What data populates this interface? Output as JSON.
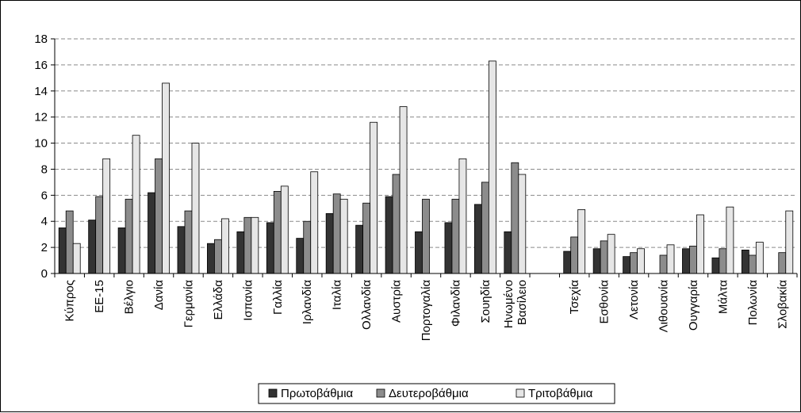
{
  "chart_data": {
    "type": "bar",
    "title": "",
    "xlabel": "",
    "ylabel": "",
    "ylim": [
      0,
      18
    ],
    "yticks": [
      0,
      2,
      4,
      6,
      8,
      10,
      12,
      14,
      16,
      18
    ],
    "grid": "horizontal dashed",
    "legend_position": "bottom",
    "categories": [
      "Κύπρος",
      "ΕΕ-15",
      "Βέλγιο",
      "Δανία",
      "Γερμανία",
      "Ελλάδα",
      "Ισπανία",
      "Γαλλία",
      "Ιρλανδία",
      "Ιταλία",
      "Ολλανδία",
      "Αυστρία",
      "Πορτογαλία",
      "Φιλανδία",
      "Σουηδία",
      [
        "Ηνωμένο",
        "Βασίλειο"
      ],
      "",
      "Τσεχία",
      "Εσθονία",
      "Λετονία",
      "Λιθουανία",
      "Ουγγαρία",
      "Μάλτα",
      "Πολωνία",
      "Σλοβακία"
    ],
    "series": [
      {
        "name": "Πρωτοβάθμια",
        "color": "#333333",
        "values": [
          3.5,
          4.1,
          3.5,
          6.2,
          3.6,
          2.3,
          3.2,
          3.9,
          2.7,
          4.6,
          3.7,
          5.9,
          3.2,
          3.9,
          5.3,
          3.2,
          null,
          1.7,
          1.9,
          1.3,
          null,
          1.9,
          1.2,
          1.8,
          null
        ]
      },
      {
        "name": "Δευτεροβάθμια",
        "color": "#8c8c8c",
        "values": [
          4.8,
          5.9,
          5.7,
          8.8,
          4.8,
          2.6,
          4.3,
          6.3,
          4.0,
          6.1,
          5.4,
          7.6,
          5.7,
          5.7,
          7.0,
          8.5,
          null,
          2.8,
          2.5,
          1.6,
          1.4,
          2.1,
          1.9,
          1.4,
          1.6
        ]
      },
      {
        "name": "Τριτοβάθμια",
        "color": "#e6e6e6",
        "values": [
          2.3,
          8.8,
          10.6,
          14.6,
          10.0,
          4.2,
          4.3,
          6.7,
          7.8,
          5.7,
          11.6,
          12.8,
          null,
          8.8,
          16.3,
          7.6,
          null,
          4.9,
          3.0,
          1.9,
          2.2,
          4.5,
          5.1,
          2.4,
          4.8
        ]
      }
    ]
  }
}
